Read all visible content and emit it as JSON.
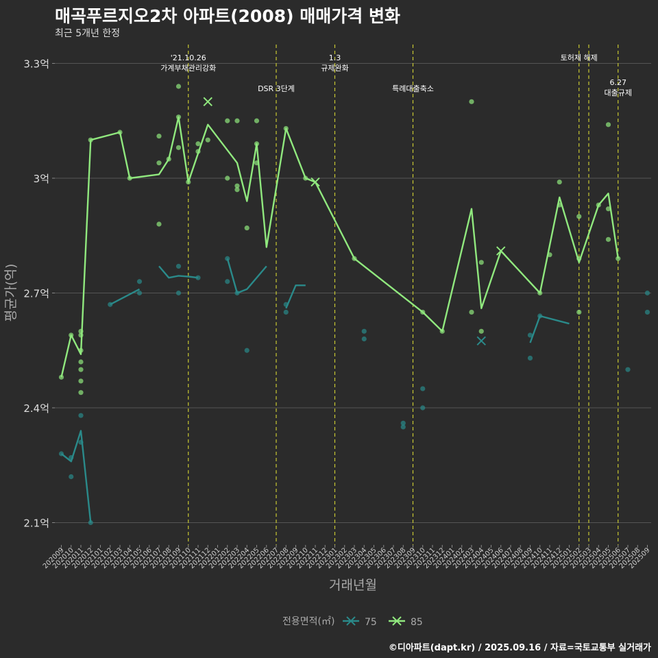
{
  "title": "매곡푸르지오2차 아파트(2008) 매매가격 변화",
  "subtitle": "최근 5개년 한정",
  "caption": "©디아파트(dapt.kr) / 2025.09.16 / 자료=국토교통부 실거래가",
  "colors": {
    "background": "#2b2b2b",
    "grid": "#555555",
    "event_line": "#c8c832",
    "series_75": "#2a8a8a",
    "series_85": "#90e87e"
  },
  "chart_data": {
    "type": "line",
    "xlabel": "거래년월",
    "ylabel": "평균가(억)",
    "ylim": [
      1.95,
      3.42
    ],
    "yticks": [
      2.1,
      2.4,
      2.7,
      3.0,
      3.3
    ],
    "ytick_labels": [
      "2.1억",
      "2.4억",
      "2.7억",
      "3억",
      "3.3억"
    ],
    "x": [
      "202009",
      "202010",
      "202011",
      "202012",
      "202101",
      "202102",
      "202103",
      "202104",
      "202105",
      "202106",
      "202107",
      "202108",
      "202109",
      "202110",
      "202111",
      "202112",
      "202201",
      "202202",
      "202203",
      "202204",
      "202205",
      "202206",
      "202207",
      "202208",
      "202209",
      "202210",
      "202211",
      "202212",
      "202301",
      "202302",
      "202303",
      "202304",
      "202305",
      "202306",
      "202307",
      "202308",
      "202309",
      "202310",
      "202311",
      "202312",
      "202401",
      "202402",
      "202403",
      "202404",
      "202405",
      "202406",
      "202407",
      "202408",
      "202409",
      "202410",
      "202411",
      "202412",
      "202501",
      "202502",
      "202503",
      "202504",
      "202505",
      "202506",
      "202507",
      "202508",
      "202509"
    ],
    "legend": {
      "title": "전용면적(㎡)",
      "position": "bottom",
      "entries": [
        "75",
        "85"
      ]
    },
    "events": [
      {
        "x": "202110",
        "label": "'21.10.26\n가계부채관리강화",
        "level": 0
      },
      {
        "x": "202207",
        "label": "DSR 3단계",
        "level": 1
      },
      {
        "x": "202301",
        "label": "1.3\n규제완화",
        "level": 0
      },
      {
        "x": "202309",
        "label": "특례대출축소",
        "level": 1
      },
      {
        "x": "202502",
        "label": "토허제 해제",
        "level": 0
      },
      {
        "x": "202503",
        "label": "",
        "level": 0
      },
      {
        "x": "202506",
        "label": "6.27\n대출규제",
        "level": 2
      }
    ],
    "series": [
      {
        "name": "75",
        "line": [
          [
            [
              "202009",
              2.28
            ],
            [
              "202010",
              2.26
            ],
            [
              "202011",
              2.34
            ],
            [
              "202012",
              2.1
            ]
          ],
          [
            [
              "202102",
              2.67
            ],
            [
              "202105",
              2.71
            ]
          ],
          [
            [
              "202107",
              2.77
            ],
            [
              "202108",
              2.74
            ],
            [
              "202109",
              2.745
            ],
            [
              "202110",
              2.743
            ],
            [
              "202111",
              2.74
            ]
          ],
          [
            [
              "202202",
              2.79
            ],
            [
              "202203",
              2.7
            ],
            [
              "202204",
              2.71
            ],
            [
              "202206",
              2.77
            ]
          ],
          [
            [
              "202208",
              2.66
            ],
            [
              "202209",
              2.72
            ],
            [
              "202210",
              2.72
            ]
          ],
          [
            [
              "202409",
              2.57
            ],
            [
              "202410",
              2.64
            ],
            [
              "202501",
              2.62
            ]
          ]
        ],
        "points": [
          [
            "202009",
            2.28
          ],
          [
            "202010",
            2.22
          ],
          [
            "202010",
            2.27
          ],
          [
            "202011",
            2.38
          ],
          [
            "202011",
            2.31
          ],
          [
            "202012",
            2.1
          ],
          [
            "202102",
            2.67
          ],
          [
            "202105",
            2.73
          ],
          [
            "202105",
            2.7
          ],
          [
            "202109",
            2.77
          ],
          [
            "202109",
            2.7
          ],
          [
            "202111",
            2.74
          ],
          [
            "202202",
            2.79
          ],
          [
            "202202",
            2.73
          ],
          [
            "202203",
            2.7
          ],
          [
            "202204",
            2.55
          ],
          [
            "202208",
            2.67
          ],
          [
            "202208",
            2.65
          ],
          [
            "202304",
            2.6
          ],
          [
            "202304",
            2.58
          ],
          [
            "202308",
            2.36
          ],
          [
            "202308",
            2.35
          ],
          [
            "202310",
            2.45
          ],
          [
            "202310",
            2.4
          ],
          [
            "202409",
            2.59
          ],
          [
            "202409",
            2.53
          ],
          [
            "202410",
            2.64
          ],
          [
            "202507",
            2.5
          ],
          [
            "202509",
            2.7
          ],
          [
            "202509",
            2.65
          ]
        ],
        "markers": [
          [
            "202404",
            2.575
          ]
        ]
      },
      {
        "name": "85",
        "line": [
          [
            [
              "202009",
              2.48
            ],
            [
              "202010",
              2.59
            ],
            [
              "202011",
              2.54
            ],
            [
              "202012",
              3.1
            ],
            [
              "202103",
              3.12
            ],
            [
              "202104",
              3.0
            ],
            [
              "202107",
              3.01
            ],
            [
              "202108",
              3.05
            ],
            [
              "202109",
              3.16
            ],
            [
              "202110",
              2.99
            ],
            [
              "202112",
              3.14
            ],
            [
              "202203",
              3.04
            ],
            [
              "202204",
              2.94
            ],
            [
              "202205",
              3.09
            ],
            [
              "202206",
              2.82
            ],
            [
              "202208",
              3.13
            ],
            [
              "202210",
              3.0
            ],
            [
              "202211",
              2.99
            ],
            [
              "202303",
              2.79
            ],
            [
              "202310",
              2.65
            ],
            [
              "202312",
              2.6
            ],
            [
              "202403",
              2.92
            ],
            [
              "202404",
              2.66
            ],
            [
              "202406",
              2.81
            ],
            [
              "202410",
              2.7
            ],
            [
              "202412",
              2.95
            ],
            [
              "202502",
              2.78
            ],
            [
              "202504",
              2.93
            ],
            [
              "202505",
              2.96
            ],
            [
              "202506",
              2.79
            ]
          ]
        ],
        "points": [
          [
            "202009",
            2.48
          ],
          [
            "202010",
            2.59
          ],
          [
            "202011",
            2.6
          ],
          [
            "202011",
            2.59
          ],
          [
            "202011",
            2.55
          ],
          [
            "202011",
            2.52
          ],
          [
            "202011",
            2.5
          ],
          [
            "202011",
            2.47
          ],
          [
            "202011",
            2.44
          ],
          [
            "202012",
            3.1
          ],
          [
            "202103",
            3.12
          ],
          [
            "202104",
            3.0
          ],
          [
            "202107",
            3.11
          ],
          [
            "202107",
            3.04
          ],
          [
            "202107",
            2.88
          ],
          [
            "202108",
            3.05
          ],
          [
            "202109",
            3.24
          ],
          [
            "202109",
            3.16
          ],
          [
            "202109",
            3.08
          ],
          [
            "202110",
            2.99
          ],
          [
            "202111",
            3.09
          ],
          [
            "202111",
            3.07
          ],
          [
            "202112",
            3.1
          ],
          [
            "202202",
            3.15
          ],
          [
            "202202",
            3.0
          ],
          [
            "202203",
            3.15
          ],
          [
            "202203",
            2.98
          ],
          [
            "202203",
            2.97
          ],
          [
            "202204",
            2.87
          ],
          [
            "202205",
            3.15
          ],
          [
            "202205",
            3.09
          ],
          [
            "202205",
            3.04
          ],
          [
            "202208",
            3.13
          ],
          [
            "202210",
            3.0
          ],
          [
            "202303",
            2.79
          ],
          [
            "202310",
            2.65
          ],
          [
            "202312",
            2.6
          ],
          [
            "202403",
            3.2
          ],
          [
            "202403",
            2.65
          ],
          [
            "202404",
            2.78
          ],
          [
            "202404",
            2.6
          ],
          [
            "202410",
            2.7
          ],
          [
            "202411",
            2.8
          ],
          [
            "202412",
            2.99
          ],
          [
            "202412",
            2.93
          ],
          [
            "202502",
            2.9
          ],
          [
            "202502",
            2.79
          ],
          [
            "202502",
            2.65
          ],
          [
            "202504",
            2.93
          ],
          [
            "202505",
            3.14
          ],
          [
            "202505",
            2.92
          ],
          [
            "202505",
            2.84
          ],
          [
            "202506",
            2.79
          ]
        ],
        "markers": [
          [
            "202112",
            3.2
          ],
          [
            "202211",
            2.99
          ],
          [
            "202406",
            2.81
          ]
        ]
      }
    ]
  }
}
